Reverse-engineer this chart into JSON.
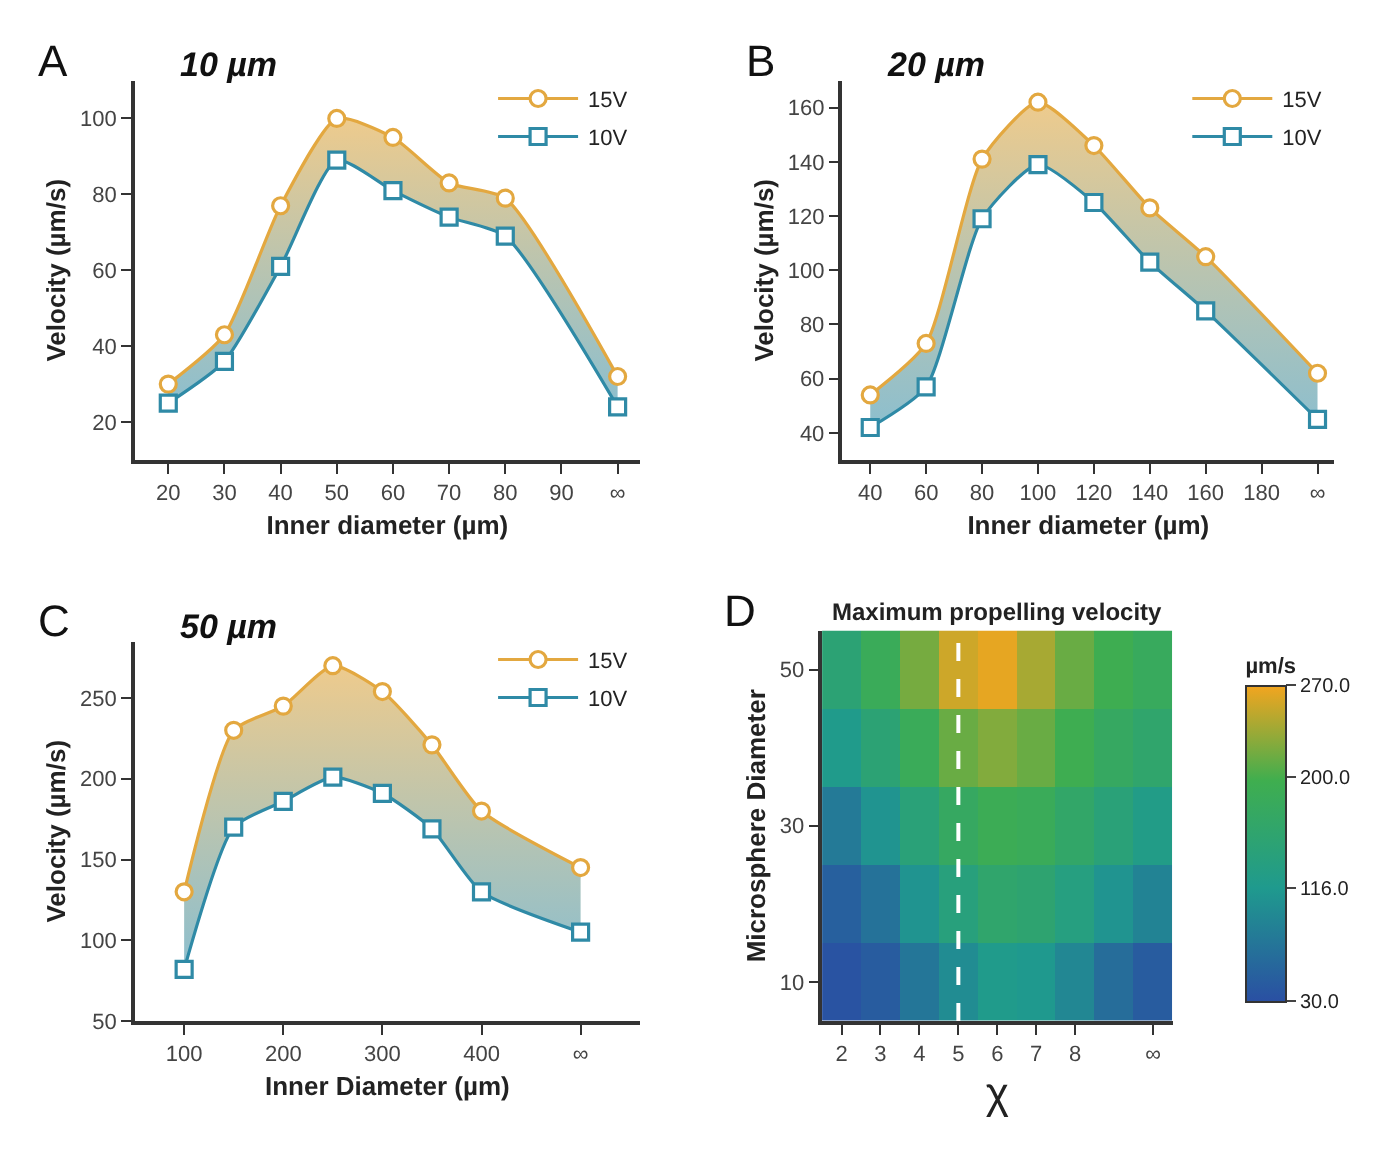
{
  "chart_data": [
    {
      "type": "line",
      "annotations": [
        "A",
        "10 µm"
      ],
      "xlabel": "Inner diameter (µm)",
      "ylabel": "Velocity (µm/s)",
      "x": [
        20,
        30,
        40,
        50,
        60,
        70,
        80,
        100
      ],
      "xlim": [
        14,
        104
      ],
      "xticks": [
        20,
        30,
        40,
        50,
        60,
        70,
        80,
        90,
        {
          "value": 100,
          "label": "∞"
        }
      ],
      "ylim": [
        10,
        110
      ],
      "yticks": [
        20,
        40,
        60,
        80,
        100
      ],
      "legend": "top right",
      "series": [
        {
          "name": "15V",
          "color": "#e3a840",
          "marker": "circle",
          "values": [
            30,
            43,
            77,
            100,
            95,
            83,
            79,
            32
          ],
          "lower": [
            25,
            36,
            61,
            89,
            81,
            74,
            69,
            24
          ],
          "upper": [
            30,
            43,
            77,
            100,
            95,
            83,
            79,
            32
          ]
        },
        {
          "name": "10V",
          "color": "#2f8aa6",
          "marker": "square",
          "values": [
            25,
            36,
            61,
            89,
            81,
            74,
            69,
            24
          ]
        }
      ]
    },
    {
      "type": "line",
      "annotations": [
        "B",
        "20 µm"
      ],
      "xlabel": "Inner diameter (µm)",
      "ylabel": "Velocity (µm/s)",
      "x": [
        40,
        60,
        80,
        100,
        120,
        140,
        160,
        200
      ],
      "xlim": [
        30,
        206
      ],
      "xticks": [
        40,
        60,
        80,
        100,
        120,
        140,
        160,
        180,
        {
          "value": 200,
          "label": "∞"
        }
      ],
      "ylim": [
        30,
        170
      ],
      "yticks": [
        40,
        60,
        80,
        100,
        120,
        140,
        160
      ],
      "legend": "top right",
      "series": [
        {
          "name": "15V",
          "color": "#e3a840",
          "marker": "circle",
          "values": [
            54,
            73,
            141,
            162,
            146,
            123,
            105,
            62
          ],
          "lower": [
            42,
            57,
            119,
            139,
            125,
            103,
            85,
            45
          ],
          "upper": [
            54,
            73,
            141,
            162,
            146,
            123,
            105,
            62
          ]
        },
        {
          "name": "10V",
          "color": "#2f8aa6",
          "marker": "square",
          "values": [
            42,
            57,
            119,
            139,
            125,
            103,
            85,
            45
          ]
        }
      ]
    },
    {
      "type": "line",
      "annotations": [
        "C",
        "50 µm"
      ],
      "xlabel": "Inner Diameter (µm)",
      "ylabel": "Velocity (µm/s)",
      "x": [
        100,
        150,
        200,
        250,
        300,
        350,
        400,
        500
      ],
      "xlim": [
        50,
        560
      ],
      "xticks": [
        100,
        200,
        300,
        400,
        {
          "value": 500,
          "label": "∞"
        }
      ],
      "ylim": [
        50,
        285
      ],
      "yticks": [
        50,
        100,
        150,
        200,
        250
      ],
      "legend": "top right",
      "series": [
        {
          "name": "15V",
          "color": "#e3a840",
          "marker": "circle",
          "values": [
            130,
            230,
            245,
            270,
            254,
            221,
            180,
            145
          ],
          "lower": [
            82,
            170,
            186,
            201,
            191,
            169,
            130,
            105
          ],
          "upper": [
            130,
            230,
            245,
            270,
            254,
            221,
            180,
            145
          ]
        },
        {
          "name": "10V",
          "color": "#2f8aa6",
          "marker": "square",
          "values": [
            82,
            170,
            186,
            201,
            191,
            169,
            130,
            105
          ]
        }
      ]
    },
    {
      "type": "heatmap",
      "annotations": [
        "D"
      ],
      "title": "Maximum propelling velocity",
      "xlabel": "χ",
      "ylabel": "Microsphere Diameter",
      "clabel": "µm/s",
      "categories": [
        "2",
        "3",
        "4",
        "5",
        "6",
        "7",
        "8",
        null,
        "∞"
      ],
      "y_categories": [
        "50",
        null,
        "30",
        null,
        "10"
      ],
      "clim": [
        30,
        270
      ],
      "cticks": [
        {
          "value": 30,
          "label": "30.0"
        },
        {
          "value": 116,
          "label": "116.0"
        },
        {
          "value": 200,
          "label": "200.0"
        },
        {
          "value": 270,
          "label": "270.0"
        }
      ],
      "cells": [
        [
          150,
          185,
          220,
          255,
          265,
          240,
          215,
          195,
          180
        ],
        [
          120,
          150,
          185,
          215,
          225,
          215,
          195,
          175,
          160
        ],
        [
          80,
          110,
          145,
          175,
          190,
          185,
          165,
          145,
          125
        ],
        [
          50,
          70,
          110,
          140,
          160,
          155,
          135,
          110,
          90
        ],
        [
          35,
          45,
          75,
          100,
          120,
          115,
          95,
          65,
          45
        ]
      ],
      "ref_lines": [
        {
          "axis": "x",
          "value": "5",
          "label": null,
          "color": "#ffffff",
          "line_style": "dashed"
        }
      ]
    }
  ]
}
